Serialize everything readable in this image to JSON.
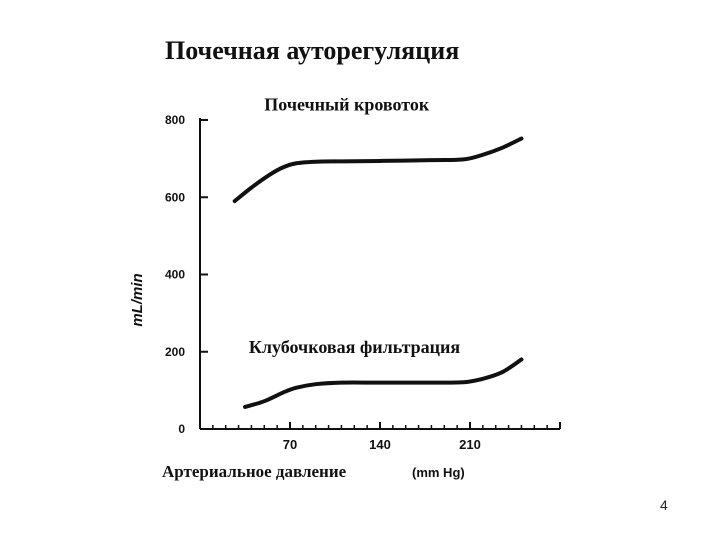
{
  "slide": {
    "title": "Почечная ауторегуляция",
    "page_number": "4"
  },
  "chart_data": {
    "type": "line",
    "title": "Почечная ауторегуляция",
    "xlabel": "Артериальное давление",
    "xunit": "(mm Hg)",
    "ylabel": "mL/min",
    "xlim": [
      0,
      280
    ],
    "ylim": [
      0,
      800
    ],
    "x_ticks": [
      70,
      140,
      210
    ],
    "y_ticks": [
      0,
      200,
      400,
      600,
      800
    ],
    "grid": false,
    "series": [
      {
        "name": "Почечный кровоток",
        "label_pos": [
          50,
          825
        ],
        "x": [
          27,
          40,
          55,
          65,
          75,
          90,
          110,
          140,
          180,
          205,
          220,
          235,
          250
        ],
        "y": [
          590,
          625,
          660,
          678,
          688,
          692,
          693,
          694,
          696,
          698,
          710,
          728,
          752
        ]
      },
      {
        "name": "Клубочковая фильтрация",
        "label_pos": [
          38,
          197
        ],
        "x": [
          35,
          50,
          65,
          75,
          90,
          110,
          140,
          180,
          205,
          220,
          235,
          250
        ],
        "y": [
          57,
          72,
          95,
          107,
          116,
          120,
          120,
          120,
          121,
          130,
          147,
          180
        ]
      }
    ]
  }
}
